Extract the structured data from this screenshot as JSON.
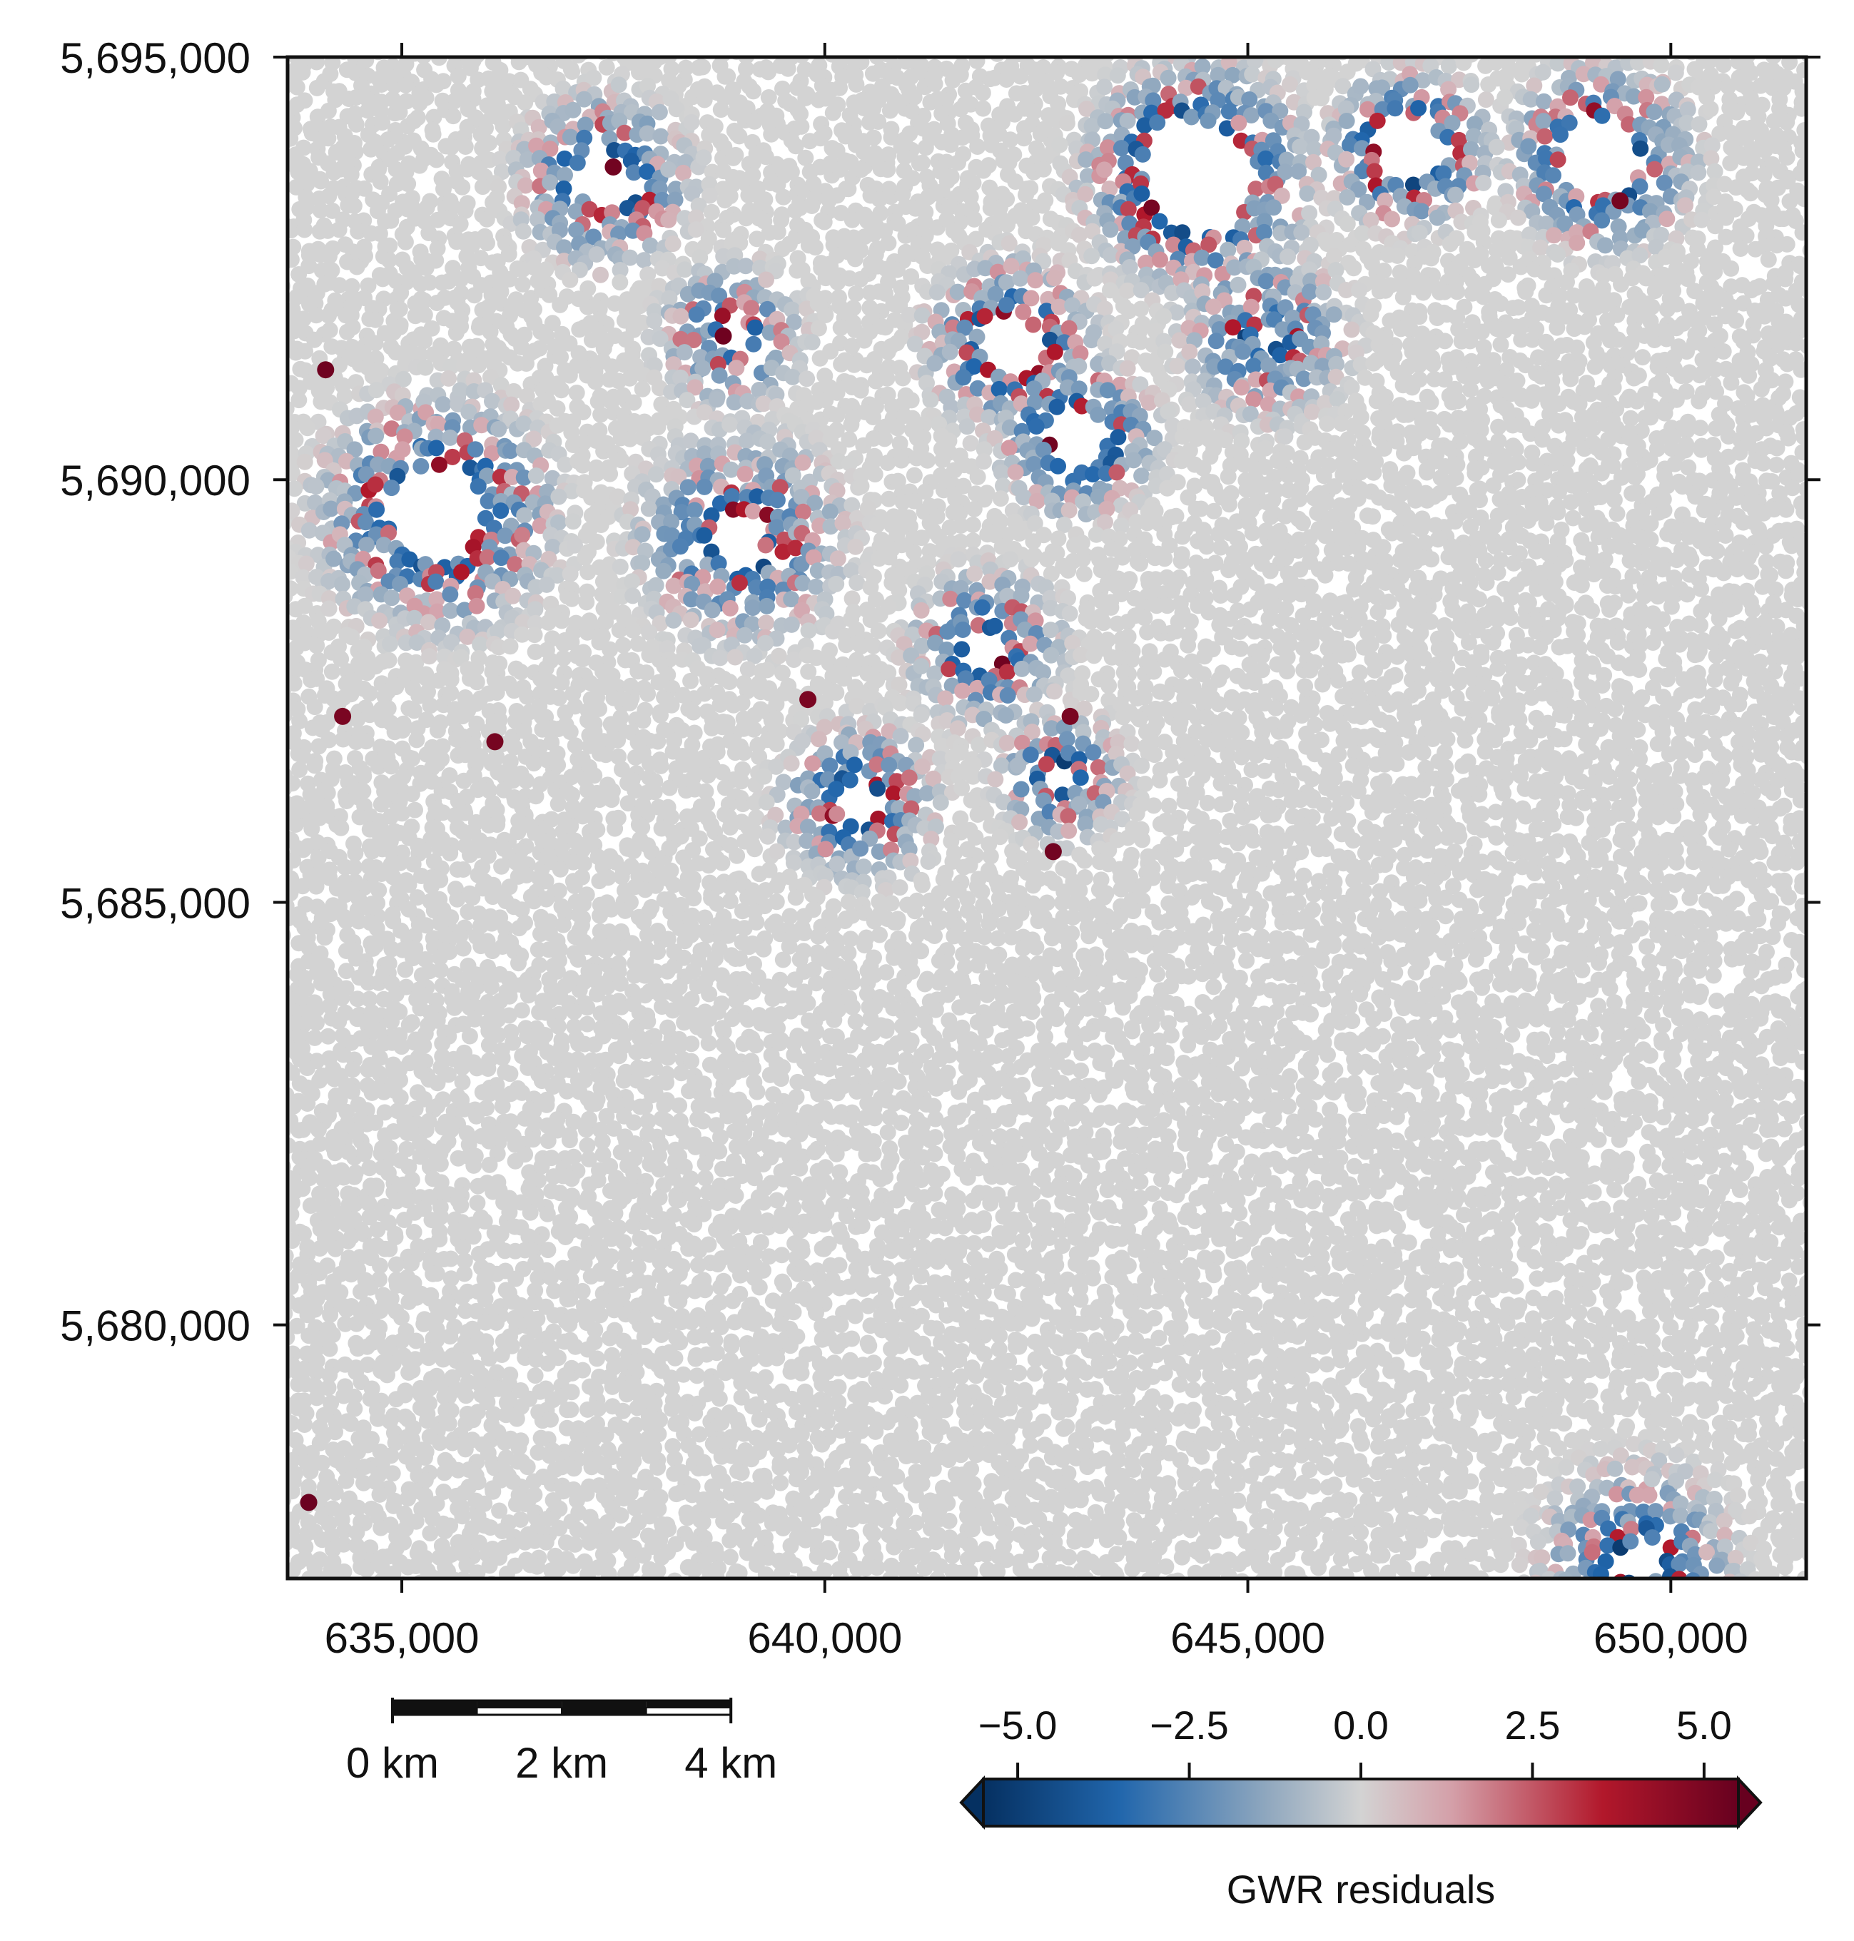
{
  "map": {
    "x_axis": {
      "tick_values": [
        635000,
        640000,
        645000,
        650000
      ],
      "tick_labels": [
        "635,000",
        "640,000",
        "645,000",
        "650,000"
      ],
      "range": [
        633650,
        651600
      ]
    },
    "y_axis": {
      "tick_values": [
        5695000,
        5690000,
        5685000,
        5680000
      ],
      "tick_labels": [
        "5,695,000",
        "5,690,000",
        "5,685,000",
        "5,680,000"
      ],
      "range": [
        5677000,
        5695000
      ]
    },
    "base_point_color": "#d3d3d3",
    "grid": false
  },
  "scale_bar": {
    "labels": [
      "0 km",
      "2 km",
      "4 km"
    ],
    "total_km": 4,
    "segments": 4
  },
  "colorbar": {
    "title": "GWR residuals",
    "tick_values": [
      -5.0,
      -2.5,
      0.0,
      2.5,
      5.0
    ],
    "tick_labels": [
      "−5.0",
      "−2.5",
      "0.0",
      "2.5",
      "5.0"
    ],
    "range": [
      -5.5,
      5.5
    ],
    "colors": {
      "min": "#053061",
      "low": "#2166ac",
      "mid_low": "#92a9bf",
      "zero": "#d3d3d3",
      "mid_high": "#d4a0a9",
      "high": "#b2182b",
      "max": "#67001f"
    },
    "placement": "bottom-right"
  },
  "chart_data": {
    "type": "scatter",
    "title": "",
    "xlabel": "",
    "ylabel": "",
    "xlim": [
      633650,
      651600
    ],
    "ylim": [
      5677000,
      5695000
    ],
    "color_variable": "GWR residuals",
    "clusters": [
      {
        "x": 637400,
        "y": 5693550,
        "hole_km": 0.35,
        "ring_km": 1.3
      },
      {
        "x": 635400,
        "y": 5689600,
        "hole_km": 0.55,
        "ring_km": 1.8
      },
      {
        "x": 638900,
        "y": 5691700,
        "hole_km": 0.2,
        "ring_km": 1.1
      },
      {
        "x": 639000,
        "y": 5689300,
        "hole_km": 0.3,
        "ring_km": 1.6
      },
      {
        "x": 642200,
        "y": 5691600,
        "hole_km": 0.35,
        "ring_km": 1.3
      },
      {
        "x": 643000,
        "y": 5690500,
        "hole_km": 0.35,
        "ring_km": 1.2
      },
      {
        "x": 644400,
        "y": 5693600,
        "hole_km": 0.65,
        "ring_km": 1.7
      },
      {
        "x": 645200,
        "y": 5691700,
        "hole_km": 0.15,
        "ring_km": 1.3
      },
      {
        "x": 646900,
        "y": 5693900,
        "hole_km": 0.4,
        "ring_km": 1.2
      },
      {
        "x": 649200,
        "y": 5693800,
        "hole_km": 0.45,
        "ring_km": 1.4
      },
      {
        "x": 641900,
        "y": 5688000,
        "hole_km": 0.25,
        "ring_km": 1.2
      },
      {
        "x": 640400,
        "y": 5686200,
        "hole_km": 0.25,
        "ring_km": 1.2
      },
      {
        "x": 642800,
        "y": 5686500,
        "hole_km": 0.15,
        "ring_km": 1.0
      },
      {
        "x": 649600,
        "y": 5677200,
        "hole_km": 0.25,
        "ring_km": 1.5
      }
    ],
    "notable_points": [
      {
        "x": 634100,
        "y": 5691300,
        "residual": 5.3
      },
      {
        "x": 634300,
        "y": 5687200,
        "residual": 5.0
      },
      {
        "x": 636100,
        "y": 5686900,
        "residual": 5.1
      },
      {
        "x": 633900,
        "y": 5677900,
        "residual": 5.4
      },
      {
        "x": 639800,
        "y": 5687400,
        "residual": 5.0
      },
      {
        "x": 642700,
        "y": 5685600,
        "residual": 5.2
      },
      {
        "x": 642900,
        "y": 5687200,
        "residual": 5.0
      },
      {
        "x": 638800,
        "y": 5691700,
        "residual": 5.3
      },
      {
        "x": 637500,
        "y": 5693700,
        "residual": 5.2
      },
      {
        "x": 649400,
        "y": 5693300,
        "residual": 5.1
      }
    ]
  }
}
